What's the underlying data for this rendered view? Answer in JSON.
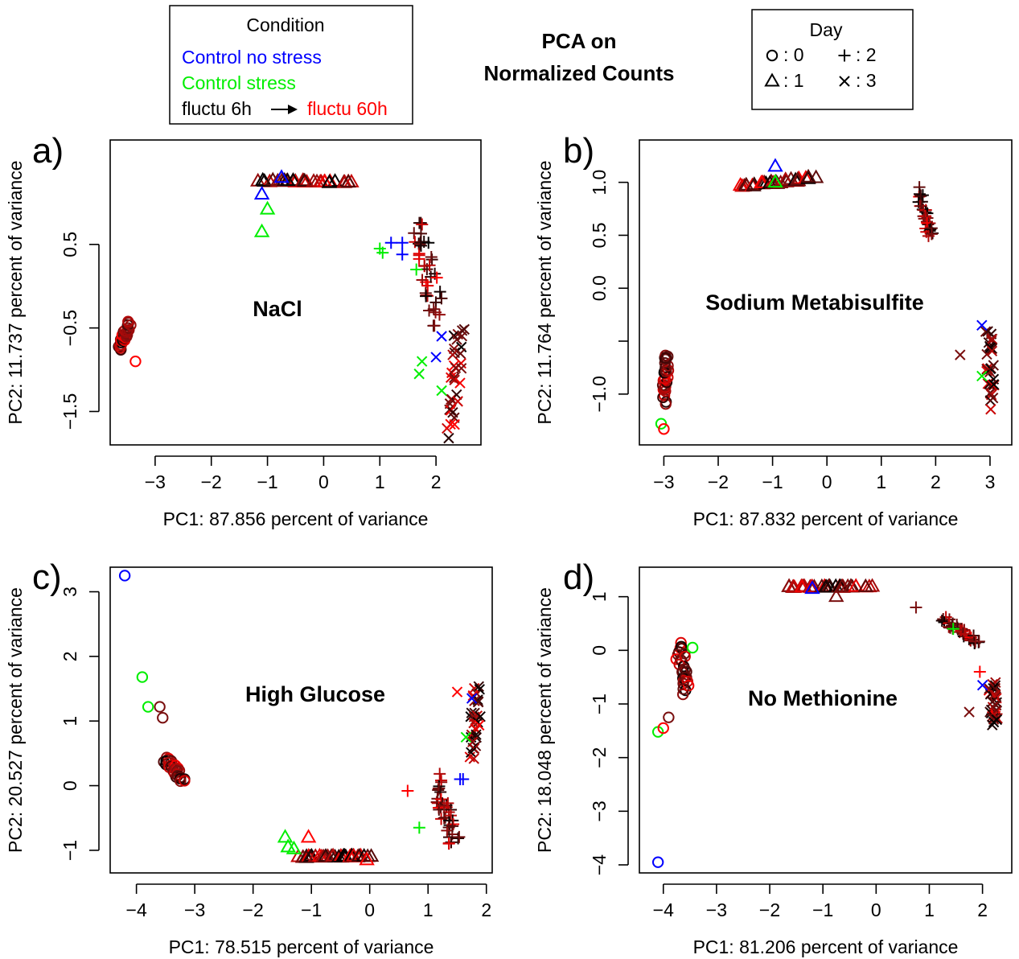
{
  "title_lines": [
    "PCA on",
    "Normalized Counts"
  ],
  "legend_condition": {
    "title": "Condition",
    "control_no_stress": "Control no stress",
    "control_stress": "Control stress",
    "fluctu_start": "fluctu 6h",
    "fluctu_end": "fluctu 60h",
    "arrow_glyph": "→"
  },
  "legend_day": {
    "title": "Day",
    "entries": [
      {
        "day": "0",
        "marker": "circle",
        "label": ": 0"
      },
      {
        "day": "1",
        "marker": "triangle",
        "label": ": 1"
      },
      {
        "day": "2",
        "marker": "plus",
        "label": ": 2"
      },
      {
        "day": "3",
        "marker": "cross",
        "label": ": 3"
      }
    ]
  },
  "colors": {
    "control_no_stress": "#0000ff",
    "control_stress": "#00ee00",
    "fluctu_6h": "#000000",
    "fluctu_mid": "#7a0f0f",
    "fluctu_60h": "#ff0000"
  },
  "chart_data": [
    {
      "type": "scatter",
      "panel": "a)",
      "title": "NaCl",
      "xlabel": "PC1: 87.856 percent of variance",
      "ylabel": "PC2: 11.737 percent of variance",
      "xlim": [
        -3.8,
        2.8
      ],
      "ylim": [
        -1.9,
        1.75
      ],
      "xticks": [
        -3,
        -2,
        -1,
        0,
        1,
        2
      ],
      "yticks": [
        -1.5,
        -0.5,
        0.5
      ],
      "ytick_labels": [
        "−1.5",
        "−0.5",
        "0.5"
      ],
      "xtick_labels": [
        "−3",
        "−2",
        "−1",
        "0",
        "1",
        "2"
      ],
      "clusters": [
        {
          "marker": "circle",
          "n": 30,
          "cx": -3.55,
          "cy": -0.6,
          "sx": 0.07,
          "sy": 0.12,
          "tilt": 0.8
        },
        {
          "marker": "triangle",
          "n": 36,
          "cx": -0.3,
          "cy": 1.25,
          "sx": 0.45,
          "sy": 0.04,
          "tilt": -0.15
        },
        {
          "marker": "plus",
          "n": 40,
          "cx": 1.85,
          "cy": 0.2,
          "sx": 0.3,
          "sy": 0.35,
          "tilt": -1.2
        },
        {
          "marker": "cross",
          "n": 34,
          "cx": 2.35,
          "cy": -1.1,
          "sx": 0.18,
          "sy": 0.35,
          "tilt": -1.8
        }
      ],
      "points": [
        {
          "marker": "triangle",
          "group": "control_stress",
          "x": -1.0,
          "y": 0.92
        },
        {
          "marker": "triangle",
          "group": "control_stress",
          "x": -1.1,
          "y": 0.65
        },
        {
          "marker": "triangle",
          "group": "control_no_stress",
          "x": -1.1,
          "y": 1.1
        },
        {
          "marker": "triangle",
          "group": "control_no_stress",
          "x": -0.75,
          "y": 1.3
        },
        {
          "marker": "plus",
          "group": "control_stress",
          "x": 1.0,
          "y": 0.45
        },
        {
          "marker": "plus",
          "group": "control_stress",
          "x": 1.05,
          "y": 0.4
        },
        {
          "marker": "plus",
          "group": "control_stress",
          "x": 1.65,
          "y": 0.2
        },
        {
          "marker": "plus",
          "group": "control_no_stress",
          "x": 1.2,
          "y": 0.52
        },
        {
          "marker": "plus",
          "group": "control_no_stress",
          "x": 1.4,
          "y": 0.52
        },
        {
          "marker": "plus",
          "group": "control_no_stress",
          "x": 1.4,
          "y": 0.38
        },
        {
          "marker": "cross",
          "group": "control_no_stress",
          "x": 2.1,
          "y": -0.6
        },
        {
          "marker": "cross",
          "group": "control_no_stress",
          "x": 2.0,
          "y": -0.85
        },
        {
          "marker": "cross",
          "group": "control_stress",
          "x": 1.75,
          "y": -0.9
        },
        {
          "marker": "cross",
          "group": "control_stress",
          "x": 1.7,
          "y": -1.05
        },
        {
          "marker": "cross",
          "group": "control_stress",
          "x": 2.1,
          "y": -1.25
        },
        {
          "marker": "circle",
          "group": "fluctu_60h",
          "x": -3.35,
          "y": -0.9
        }
      ]
    },
    {
      "type": "scatter",
      "panel": "b)",
      "title": "Sodium Metabisulfite",
      "xlabel": "PC1: 87.832 percent of variance",
      "ylabel": "PC2: 11.764 percent of variance",
      "xlim": [
        -3.45,
        3.4
      ],
      "ylim": [
        -1.48,
        1.4
      ],
      "xticks": [
        -3,
        -2,
        -1,
        0,
        1,
        2,
        3
      ],
      "yticks": [
        -1.0,
        -0.5,
        0.0,
        0.5,
        1.0
      ],
      "ytick_labels": [
        "−1.0",
        "",
        "0.0",
        "0.5",
        "1.0"
      ],
      "xtick_labels": [
        "−3",
        "−2",
        "−1",
        "0",
        "1",
        "2",
        "3"
      ],
      "clusters": [
        {
          "marker": "circle",
          "n": 30,
          "cx": -2.97,
          "cy": -0.85,
          "sx": 0.05,
          "sy": 0.13,
          "tilt": 1.2
        },
        {
          "marker": "triangle",
          "n": 36,
          "cx": -0.9,
          "cy": 1.0,
          "sx": 0.45,
          "sy": 0.05,
          "tilt": 0.5
        },
        {
          "marker": "plus",
          "n": 32,
          "cx": 1.8,
          "cy": 0.7,
          "sx": 0.12,
          "sy": 0.15,
          "tilt": -1.0
        },
        {
          "marker": "cross",
          "n": 34,
          "cx": 3.0,
          "cy": -0.75,
          "sx": 0.08,
          "sy": 0.2,
          "tilt": -1.4
        }
      ],
      "points": [
        {
          "marker": "circle",
          "group": "control_stress",
          "x": -3.05,
          "y": -1.28
        },
        {
          "marker": "circle",
          "group": "fluctu_60h",
          "x": -3.0,
          "y": -1.33
        },
        {
          "marker": "cross",
          "group": "fluctu_mid",
          "x": 2.45,
          "y": -0.63
        },
        {
          "marker": "cross",
          "group": "control_no_stress",
          "x": 2.85,
          "y": -0.35
        },
        {
          "marker": "cross",
          "group": "control_stress",
          "x": 2.85,
          "y": -0.83
        },
        {
          "marker": "triangle",
          "group": "control_no_stress",
          "x": -0.95,
          "y": 1.15
        },
        {
          "marker": "triangle",
          "group": "control_stress",
          "x": -0.95,
          "y": 1.0
        }
      ]
    },
    {
      "type": "scatter",
      "panel": "c)",
      "title": "High Glucose",
      "xlabel": "PC1: 78.515 percent of variance",
      "ylabel": "PC2: 20.527 percent of variance",
      "xlim": [
        -4.45,
        2.1
      ],
      "ylim": [
        -1.35,
        3.38
      ],
      "xticks": [
        -4,
        -3,
        -2,
        -1,
        0,
        1,
        2
      ],
      "yticks": [
        -1,
        0,
        1,
        2,
        3
      ],
      "ytick_labels": [
        "−1",
        "0",
        "1",
        "2",
        "3"
      ],
      "xtick_labels": [
        "−4",
        "−3",
        "−2",
        "−1",
        "0",
        "1",
        "2"
      ],
      "clusters": [
        {
          "marker": "circle",
          "n": 30,
          "cx": -3.35,
          "cy": 0.25,
          "sx": 0.12,
          "sy": 0.18,
          "tilt": -0.6
        },
        {
          "marker": "triangle",
          "n": 36,
          "cx": -0.6,
          "cy": -1.1,
          "sx": 0.35,
          "sy": 0.04,
          "tilt": 0.1
        },
        {
          "marker": "plus",
          "n": 40,
          "cx": 1.3,
          "cy": -0.4,
          "sx": 0.2,
          "sy": 0.3,
          "tilt": -1.1
        },
        {
          "marker": "cross",
          "n": 34,
          "cx": 1.8,
          "cy": 1.0,
          "sx": 0.06,
          "sy": 0.3,
          "tilt": -1.5
        }
      ],
      "points": [
        {
          "marker": "circle",
          "group": "control_no_stress",
          "x": -4.2,
          "y": 3.25
        },
        {
          "marker": "circle",
          "group": "control_stress",
          "x": -3.9,
          "y": 1.68
        },
        {
          "marker": "circle",
          "group": "control_stress",
          "x": -3.8,
          "y": 1.22
        },
        {
          "marker": "circle",
          "group": "fluctu_mid",
          "x": -3.6,
          "y": 1.22
        },
        {
          "marker": "circle",
          "group": "fluctu_mid",
          "x": -3.55,
          "y": 1.05
        },
        {
          "marker": "triangle",
          "group": "control_stress",
          "x": -1.45,
          "y": -0.8
        },
        {
          "marker": "triangle",
          "group": "control_stress",
          "x": -1.4,
          "y": -0.95
        },
        {
          "marker": "triangle",
          "group": "control_stress",
          "x": -1.3,
          "y": -0.98
        },
        {
          "marker": "triangle",
          "group": "fluctu_60h",
          "x": -1.05,
          "y": -0.8
        },
        {
          "marker": "triangle",
          "group": "fluctu_60h",
          "x": -0.05,
          "y": -1.15
        },
        {
          "marker": "plus",
          "group": "fluctu_60h",
          "x": 0.65,
          "y": -0.08
        },
        {
          "marker": "plus",
          "group": "control_stress",
          "x": 0.85,
          "y": -0.65
        },
        {
          "marker": "plus",
          "group": "control_no_stress",
          "x": 1.55,
          "y": 0.1
        },
        {
          "marker": "plus",
          "group": "control_no_stress",
          "x": 1.6,
          "y": 0.1
        },
        {
          "marker": "cross",
          "group": "fluctu_60h",
          "x": 1.5,
          "y": 1.45
        },
        {
          "marker": "cross",
          "group": "control_stress",
          "x": 1.65,
          "y": 0.75
        },
        {
          "marker": "cross",
          "group": "control_no_stress",
          "x": 1.75,
          "y": 1.35
        }
      ]
    },
    {
      "type": "scatter",
      "panel": "d)",
      "title": "No Methionine",
      "xlabel": "PC1: 81.206 percent of variance",
      "ylabel": "PC2: 18.048 percent of variance",
      "xlim": [
        -4.45,
        2.55
      ],
      "ylim": [
        -4.15,
        1.55
      ],
      "xticks": [
        -4,
        -3,
        -2,
        -1,
        0,
        1,
        2
      ],
      "yticks": [
        -4,
        -3,
        -2,
        -1,
        0,
        1
      ],
      "ytick_labels": [
        "−4",
        "−3",
        "−2",
        "−1",
        "0",
        "1"
      ],
      "xtick_labels": [
        "−4",
        "−3",
        "−2",
        "−1",
        "0",
        "1",
        "2"
      ],
      "clusters": [
        {
          "marker": "circle",
          "n": 30,
          "cx": -3.65,
          "cy": -0.35,
          "sx": 0.07,
          "sy": 0.28,
          "tilt": -1.1
        },
        {
          "marker": "triangle",
          "n": 36,
          "cx": -0.9,
          "cy": 1.18,
          "sx": 0.45,
          "sy": 0.04,
          "tilt": 0.0
        },
        {
          "marker": "plus",
          "n": 40,
          "cx": 1.6,
          "cy": 0.35,
          "sx": 0.25,
          "sy": 0.2,
          "tilt": -0.7
        },
        {
          "marker": "cross",
          "n": 34,
          "cx": 2.2,
          "cy": -1.0,
          "sx": 0.08,
          "sy": 0.22,
          "tilt": -1.4
        }
      ],
      "points": [
        {
          "marker": "circle",
          "group": "control_no_stress",
          "x": -4.1,
          "y": -3.95
        },
        {
          "marker": "circle",
          "group": "control_stress",
          "x": -4.1,
          "y": -1.52
        },
        {
          "marker": "circle",
          "group": "fluctu_mid",
          "x": -3.9,
          "y": -1.25
        },
        {
          "marker": "circle",
          "group": "fluctu_60h",
          "x": -4.0,
          "y": -1.45
        },
        {
          "marker": "circle",
          "group": "control_stress",
          "x": -3.45,
          "y": 0.05
        },
        {
          "marker": "triangle",
          "group": "fluctu_mid",
          "x": -0.75,
          "y": 1.0
        },
        {
          "marker": "triangle",
          "group": "control_no_stress",
          "x": -1.2,
          "y": 1.15
        },
        {
          "marker": "plus",
          "group": "fluctu_mid",
          "x": 0.75,
          "y": 0.8
        },
        {
          "marker": "plus",
          "group": "fluctu_60h",
          "x": 1.95,
          "y": -0.4
        },
        {
          "marker": "plus",
          "group": "control_stress",
          "x": 1.45,
          "y": 0.4
        },
        {
          "marker": "cross",
          "group": "control_no_stress",
          "x": 2.0,
          "y": -0.65
        },
        {
          "marker": "cross",
          "group": "fluctu_mid",
          "x": 1.75,
          "y": -1.15
        }
      ]
    }
  ]
}
